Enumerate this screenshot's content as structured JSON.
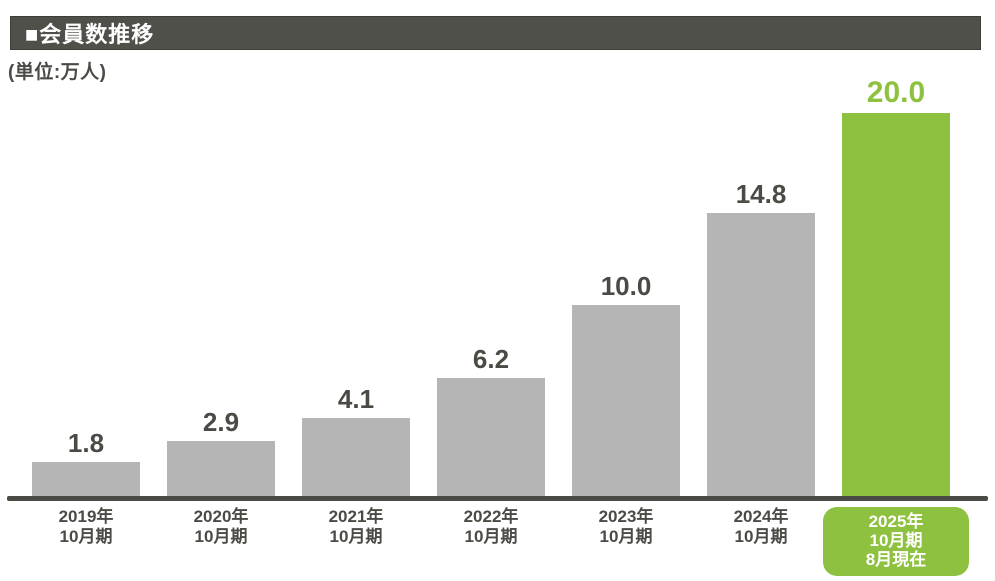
{
  "header": {
    "title": "■会員数推移"
  },
  "unit_label": "(単位:万人)",
  "colors": {
    "dark_bar": "#50504a",
    "text": "#4b4a45",
    "bar": "#b5b5b5",
    "highlight": "#8dc13f",
    "background": "#ffffff"
  },
  "chart_data": {
    "type": "bar",
    "title": "会員数推移",
    "unit": "万人",
    "categories": [
      "2019年\n10月期",
      "2020年\n10月期",
      "2021年\n10月期",
      "2022年\n10月期",
      "2023年\n10月期",
      "2024年\n10月期",
      "2025年\n10月期\n8月現在"
    ],
    "values": [
      1.8,
      2.9,
      4.1,
      6.2,
      10.0,
      14.8,
      20.0
    ],
    "value_labels": [
      "1.8",
      "2.9",
      "4.1",
      "6.2",
      "10.0",
      "14.8",
      "20.0"
    ],
    "highlight_index": 6,
    "xlabel": "",
    "ylabel": "万人",
    "ylim": [
      0,
      20
    ],
    "grid": false,
    "legend": false,
    "y_axis_visible": false,
    "x_axis_line": true
  }
}
